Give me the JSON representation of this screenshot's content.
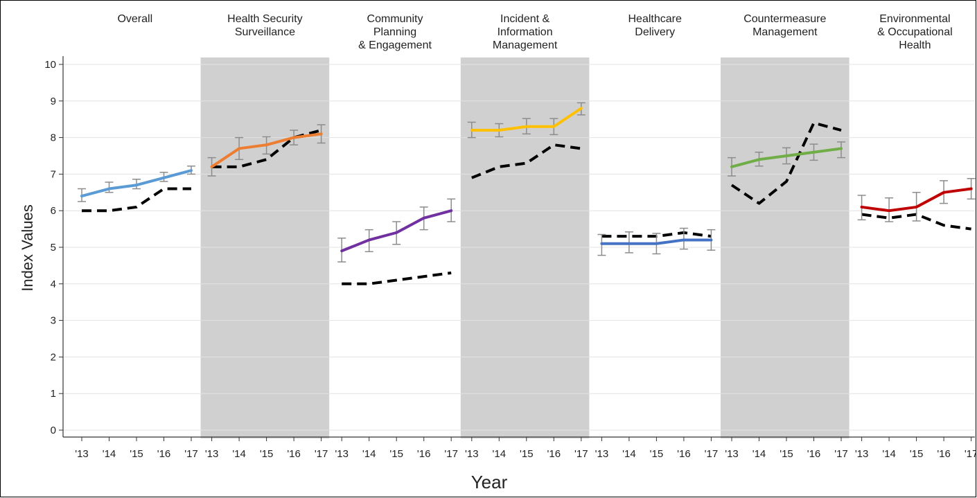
{
  "chart_data": {
    "type": "line",
    "xlabel": "Year",
    "ylabel": "Index Values",
    "ylim": [
      0,
      10
    ],
    "yticks": [
      "0",
      "1",
      "2",
      "3",
      "4",
      "5",
      "6",
      "7",
      "8",
      "9",
      "10"
    ],
    "x": [
      "'13",
      "'14",
      "'15",
      "'16",
      "'17"
    ],
    "grid": "horizontal",
    "panels": [
      {
        "title": [
          "Overall"
        ],
        "shaded": false,
        "color": "#5B9BD5",
        "values": [
          6.4,
          6.6,
          6.7,
          6.9,
          7.1
        ],
        "error_low": [
          6.25,
          6.5,
          6.6,
          6.8,
          7.0
        ],
        "error_high": [
          6.6,
          6.78,
          6.86,
          7.05,
          7.22
        ],
        "reference": [
          6.0,
          6.0,
          6.1,
          6.6,
          6.6
        ]
      },
      {
        "title": [
          "Health Security",
          "Surveillance"
        ],
        "shaded": true,
        "color": "#ED7D31",
        "values": [
          7.2,
          7.7,
          7.8,
          8.0,
          8.1
        ],
        "error_low": [
          6.95,
          7.4,
          7.55,
          7.8,
          7.85
        ],
        "error_high": [
          7.45,
          8.0,
          8.02,
          8.2,
          8.35
        ],
        "reference": [
          7.2,
          7.2,
          7.4,
          8.0,
          8.2
        ]
      },
      {
        "title": [
          "Community",
          "Planning",
          "& Engagement"
        ],
        "shaded": false,
        "color": "#7030A0",
        "values": [
          4.9,
          5.2,
          5.4,
          5.8,
          6.0
        ],
        "error_low": [
          4.6,
          4.88,
          5.08,
          5.48,
          5.7
        ],
        "error_high": [
          5.25,
          5.48,
          5.7,
          6.1,
          6.32
        ],
        "reference": [
          4.0,
          4.0,
          4.1,
          4.2,
          4.3
        ]
      },
      {
        "title": [
          "Incident &",
          "Information",
          "Management"
        ],
        "shaded": true,
        "color": "#FFC000",
        "values": [
          8.2,
          8.2,
          8.3,
          8.3,
          8.8
        ],
        "error_low": [
          8.0,
          8.02,
          8.1,
          8.08,
          8.62
        ],
        "error_high": [
          8.42,
          8.38,
          8.52,
          8.52,
          8.95
        ],
        "reference": [
          6.9,
          7.2,
          7.3,
          7.8,
          7.7
        ]
      },
      {
        "title": [
          "Healthcare",
          "Delivery"
        ],
        "shaded": false,
        "color": "#4472C4",
        "values": [
          5.1,
          5.1,
          5.1,
          5.2,
          5.2
        ],
        "error_low": [
          4.78,
          4.85,
          4.82,
          4.95,
          4.92
        ],
        "error_high": [
          5.35,
          5.42,
          5.38,
          5.52,
          5.48
        ],
        "reference": [
          5.3,
          5.3,
          5.3,
          5.4,
          5.3
        ]
      },
      {
        "title": [
          "Countermeasure",
          "Management"
        ],
        "shaded": true,
        "color": "#70AD47",
        "values": [
          7.2,
          7.4,
          7.5,
          7.6,
          7.7
        ],
        "error_low": [
          6.95,
          7.22,
          7.28,
          7.38,
          7.45
        ],
        "error_high": [
          7.45,
          7.6,
          7.72,
          7.82,
          7.88
        ],
        "reference": [
          6.7,
          6.2,
          6.8,
          8.4,
          8.2
        ]
      },
      {
        "title": [
          "Environmental",
          "& Occupational",
          "Health"
        ],
        "shaded": false,
        "color": "#C00000",
        "values": [
          6.1,
          6.0,
          6.1,
          6.5,
          6.6
        ],
        "error_low": [
          5.75,
          5.7,
          5.72,
          6.2,
          6.32
        ],
        "error_high": [
          6.42,
          6.35,
          6.5,
          6.82,
          6.88
        ],
        "reference": [
          5.9,
          5.8,
          5.9,
          5.6,
          5.5
        ]
      }
    ]
  }
}
